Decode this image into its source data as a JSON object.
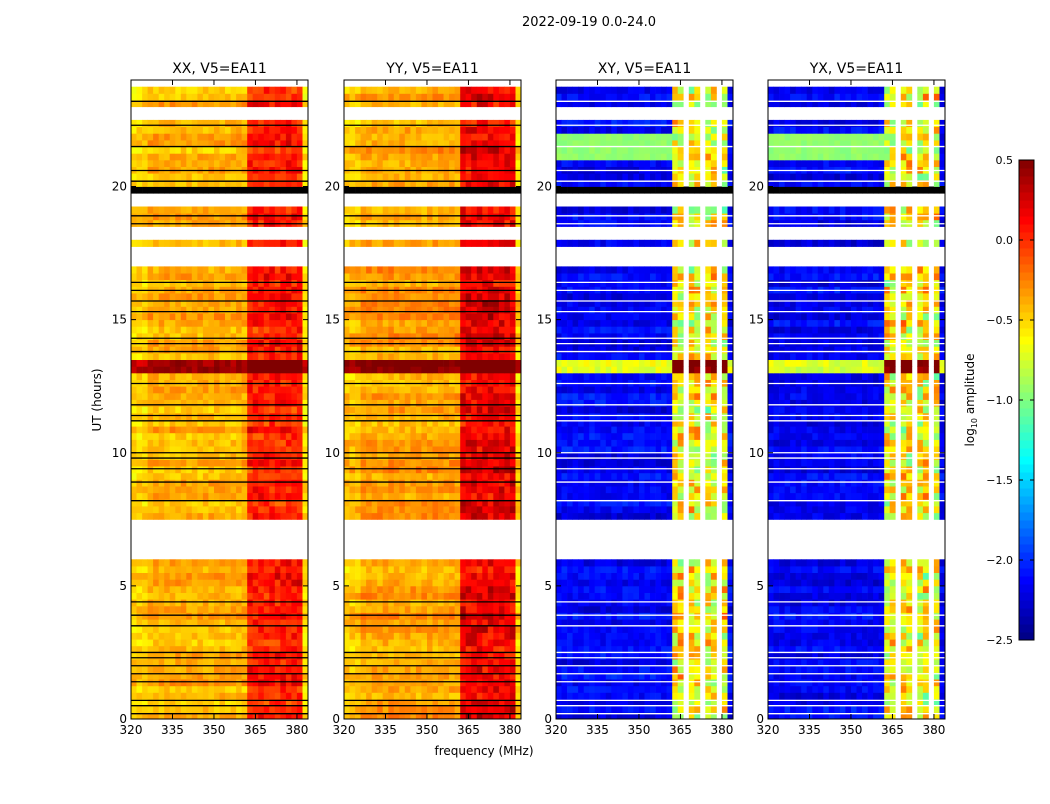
{
  "chart_data": {
    "type": "heatmap",
    "suptitle": "2022-09-19 0.0-24.0",
    "xlabel": "frequency (MHz)",
    "ylabel": "UT (hours)",
    "xlim": [
      320,
      384
    ],
    "ylim": [
      0,
      24
    ],
    "xticks": [
      320,
      335,
      350,
      365,
      380
    ],
    "yticks": [
      0,
      5,
      10,
      15,
      20
    ],
    "colorbar": {
      "label_prefix": "log",
      "label_sub": "10",
      "label_suffix": " amplitude",
      "vmin": -2.5,
      "vmax": 0.5,
      "ticks": [
        "0.5",
        "0.0",
        "−0.5",
        "−1.0",
        "−1.5",
        "−2.0",
        "−2.5"
      ],
      "tick_values": [
        0.5,
        0.0,
        -0.5,
        -1.0,
        -1.5,
        -2.0,
        -2.5
      ],
      "colormap": "jet"
    },
    "panels": [
      {
        "title": "XX, V5=EA11",
        "base": -0.4,
        "rfi": 0.55,
        "type": "parallel"
      },
      {
        "title": "YY, V5=EA11",
        "base": -0.35,
        "rfi": 0.65,
        "type": "parallel"
      },
      {
        "title": "XY, V5=EA11",
        "base": -2.15,
        "rfi": 1.9,
        "type": "cross"
      },
      {
        "title": "YX, V5=EA11",
        "base": -2.15,
        "rfi": 1.9,
        "type": "cross"
      }
    ],
    "rfi_band_mhz": [
      362,
      382
    ],
    "flagged_channels_cross_mhz": [
      366,
      372,
      378
    ],
    "flagged_time_ranges_h": [
      [
        5.85,
        7.5
      ],
      [
        17.0,
        17.6
      ],
      [
        19.1,
        19.6
      ],
      [
        22.4,
        22.8
      ],
      [
        23.6,
        24.0
      ],
      [
        18.0,
        18.3
      ],
      [
        4.1,
        4.25
      ],
      [
        7.6,
        7.7
      ]
    ],
    "black_time_ranges_h": [
      [
        19.7,
        19.85
      ]
    ],
    "strong_time_ranges_h": [
      [
        12.95,
        13.35
      ]
    ],
    "green_time_ranges_cross_h": [
      [
        21.0,
        22.0
      ]
    ],
    "line_hours": [
      0.2,
      0.5,
      0.7,
      1.4,
      1.7,
      2.0,
      2.3,
      2.5,
      3.5,
      3.9,
      4.4,
      8.2,
      8.9,
      9.4,
      9.8,
      10.0,
      11.2,
      11.4,
      11.8,
      12.6,
      13.8,
      14.1,
      14.3,
      15.3,
      15.7,
      16.1,
      16.4,
      18.6,
      18.9,
      20.2,
      20.6,
      21.5,
      22.3,
      23.2
    ]
  }
}
